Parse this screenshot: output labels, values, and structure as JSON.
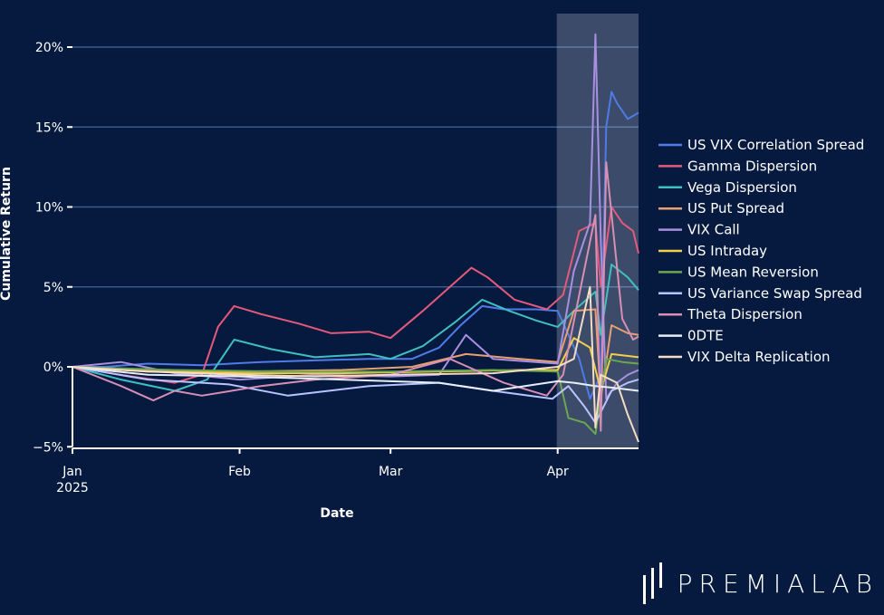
{
  "chart_data": {
    "type": "line",
    "title": "",
    "xlabel": "Date",
    "ylabel": "Cumulative Return",
    "x_ticks": [
      {
        "date": "2025-01-01",
        "label": "Jan",
        "sub": "2025"
      },
      {
        "date": "2025-02-01",
        "label": "Feb",
        "sub": ""
      },
      {
        "date": "2025-03-01",
        "label": "Mar",
        "sub": ""
      },
      {
        "date": "2025-04-01",
        "label": "Apr",
        "sub": ""
      }
    ],
    "y_ticks": [
      {
        "value": -5,
        "label": "−5%"
      },
      {
        "value": 0,
        "label": "0%"
      },
      {
        "value": 5,
        "label": "5%"
      },
      {
        "value": 10,
        "label": "10%"
      },
      {
        "value": 15,
        "label": "15%"
      },
      {
        "value": 20,
        "label": "20%"
      }
    ],
    "xlim": [
      "2025-01-01",
      "2025-04-16"
    ],
    "ylim": [
      -5,
      22
    ],
    "grid": "horizontal",
    "legend_position": "right",
    "highlight_region": {
      "start": "2025-04-01",
      "end": "2025-04-16"
    },
    "series": [
      {
        "name": "US VIX Correlation Spread",
        "color": "#4f7be8",
        "points": [
          [
            "2025-01-01",
            0
          ],
          [
            "2025-01-07",
            0
          ],
          [
            "2025-01-15",
            0.2
          ],
          [
            "2025-01-25",
            0.1
          ],
          [
            "2025-02-05",
            0.3
          ],
          [
            "2025-02-15",
            0.4
          ],
          [
            "2025-02-25",
            0.5
          ],
          [
            "2025-03-05",
            0.5
          ],
          [
            "2025-03-10",
            1.2
          ],
          [
            "2025-03-14",
            2.6
          ],
          [
            "2025-03-18",
            3.8
          ],
          [
            "2025-03-22",
            3.6
          ],
          [
            "2025-03-28",
            3.6
          ],
          [
            "2025-04-01",
            3.5
          ],
          [
            "2025-04-05",
            0.5
          ],
          [
            "2025-04-07",
            -2
          ],
          [
            "2025-04-09",
            -0.5
          ],
          [
            "2025-04-10",
            15
          ],
          [
            "2025-04-11",
            17.2
          ],
          [
            "2025-04-12",
            16.5
          ],
          [
            "2025-04-14",
            15.5
          ],
          [
            "2025-04-16",
            15.9
          ]
        ]
      },
      {
        "name": "Gamma Dispersion",
        "color": "#e35a7a",
        "points": [
          [
            "2025-01-01",
            0
          ],
          [
            "2025-01-10",
            -0.5
          ],
          [
            "2025-01-20",
            -1
          ],
          [
            "2025-01-25",
            -0.5
          ],
          [
            "2025-01-28",
            2.5
          ],
          [
            "2025-01-31",
            3.8
          ],
          [
            "2025-02-05",
            3.3
          ],
          [
            "2025-02-12",
            2.7
          ],
          [
            "2025-02-18",
            2.1
          ],
          [
            "2025-02-25",
            2.2
          ],
          [
            "2025-03-01",
            1.8
          ],
          [
            "2025-03-07",
            3.5
          ],
          [
            "2025-03-12",
            5
          ],
          [
            "2025-03-16",
            6.2
          ],
          [
            "2025-03-19",
            5.6
          ],
          [
            "2025-03-24",
            4.2
          ],
          [
            "2025-03-30",
            3.6
          ],
          [
            "2025-04-02",
            4.5
          ],
          [
            "2025-04-05",
            8.5
          ],
          [
            "2025-04-08",
            9
          ],
          [
            "2025-04-09",
            5
          ],
          [
            "2025-04-11",
            10
          ],
          [
            "2025-04-13",
            9
          ],
          [
            "2025-04-15",
            8.5
          ],
          [
            "2025-04-16",
            7.1
          ]
        ]
      },
      {
        "name": "Vega Dispersion",
        "color": "#3fbfbf",
        "points": [
          [
            "2025-01-01",
            0
          ],
          [
            "2025-01-10",
            -0.8
          ],
          [
            "2025-01-20",
            -1.5
          ],
          [
            "2025-01-26",
            -0.8
          ],
          [
            "2025-01-31",
            1.7
          ],
          [
            "2025-02-07",
            1.1
          ],
          [
            "2025-02-15",
            0.6
          ],
          [
            "2025-02-25",
            0.8
          ],
          [
            "2025-03-01",
            0.5
          ],
          [
            "2025-03-07",
            1.3
          ],
          [
            "2025-03-13",
            2.8
          ],
          [
            "2025-03-18",
            4.2
          ],
          [
            "2025-03-23",
            3.5
          ],
          [
            "2025-03-28",
            2.9
          ],
          [
            "2025-04-01",
            2.5
          ],
          [
            "2025-04-04",
            3.5
          ],
          [
            "2025-04-08",
            4.7
          ],
          [
            "2025-04-09",
            2
          ],
          [
            "2025-04-11",
            6.4
          ],
          [
            "2025-04-14",
            5.6
          ],
          [
            "2025-04-16",
            4.8
          ]
        ]
      },
      {
        "name": "US Put Spread",
        "color": "#e8a070",
        "points": [
          [
            "2025-01-01",
            0
          ],
          [
            "2025-01-15",
            -0.2
          ],
          [
            "2025-02-01",
            -0.3
          ],
          [
            "2025-02-20",
            -0.2
          ],
          [
            "2025-03-05",
            0
          ],
          [
            "2025-03-15",
            0.8
          ],
          [
            "2025-03-25",
            0.5
          ],
          [
            "2025-04-01",
            0.3
          ],
          [
            "2025-04-04",
            3.5
          ],
          [
            "2025-04-08",
            3.6
          ],
          [
            "2025-04-09",
            -2
          ],
          [
            "2025-04-11",
            2.6
          ],
          [
            "2025-04-14",
            2.1
          ],
          [
            "2025-04-16",
            2
          ]
        ]
      },
      {
        "name": "VIX Call",
        "color": "#a98fe0",
        "points": [
          [
            "2025-01-01",
            0
          ],
          [
            "2025-01-10",
            0.3
          ],
          [
            "2025-01-20",
            -0.4
          ],
          [
            "2025-02-01",
            -0.8
          ],
          [
            "2025-02-15",
            -0.5
          ],
          [
            "2025-03-01",
            -0.6
          ],
          [
            "2025-03-10",
            -0.5
          ],
          [
            "2025-03-15",
            2
          ],
          [
            "2025-03-20",
            0.5
          ],
          [
            "2025-04-01",
            0.2
          ],
          [
            "2025-04-04",
            6
          ],
          [
            "2025-04-07",
            9
          ],
          [
            "2025-04-08",
            20.8
          ],
          [
            "2025-04-09",
            8
          ],
          [
            "2025-04-10",
            -2
          ],
          [
            "2025-04-12",
            -1
          ],
          [
            "2025-04-14",
            -0.5
          ],
          [
            "2025-04-16",
            -0.2
          ]
        ]
      },
      {
        "name": "US Intraday",
        "color": "#f2cf4a",
        "points": [
          [
            "2025-01-01",
            0
          ],
          [
            "2025-01-15",
            -0.3
          ],
          [
            "2025-02-01",
            -0.4
          ],
          [
            "2025-02-20",
            -0.4
          ],
          [
            "2025-03-10",
            -0.3
          ],
          [
            "2025-03-25",
            -0.2
          ],
          [
            "2025-04-01",
            -0.2
          ],
          [
            "2025-04-04",
            1.8
          ],
          [
            "2025-04-07",
            1.2
          ],
          [
            "2025-04-09",
            -1.5
          ],
          [
            "2025-04-11",
            0.8
          ],
          [
            "2025-04-16",
            0.6
          ]
        ]
      },
      {
        "name": "US Mean Reversion",
        "color": "#6aa84f",
        "points": [
          [
            "2025-01-01",
            0
          ],
          [
            "2025-01-20",
            -0.2
          ],
          [
            "2025-02-10",
            -0.3
          ],
          [
            "2025-03-01",
            -0.3
          ],
          [
            "2025-03-20",
            -0.2
          ],
          [
            "2025-04-01",
            -0.3
          ],
          [
            "2025-04-03",
            -3.2
          ],
          [
            "2025-04-06",
            -3.5
          ],
          [
            "2025-04-08",
            -4.2
          ],
          [
            "2025-04-10",
            0.5
          ],
          [
            "2025-04-13",
            0.3
          ],
          [
            "2025-04-16",
            0.2
          ]
        ]
      },
      {
        "name": "US Variance Swap Spread",
        "color": "#b9c3ff",
        "points": [
          [
            "2025-01-01",
            0
          ],
          [
            "2025-01-15",
            -0.8
          ],
          [
            "2025-01-30",
            -1.1
          ],
          [
            "2025-02-10",
            -1.8
          ],
          [
            "2025-02-25",
            -1.2
          ],
          [
            "2025-03-10",
            -1.0
          ],
          [
            "2025-03-20",
            -1.5
          ],
          [
            "2025-03-31",
            -2.0
          ],
          [
            "2025-04-03",
            -1.2
          ],
          [
            "2025-04-06",
            -2.5
          ],
          [
            "2025-04-08",
            -3.5
          ],
          [
            "2025-04-11",
            -1.5
          ],
          [
            "2025-04-14",
            -1.0
          ],
          [
            "2025-04-16",
            -0.8
          ]
        ]
      },
      {
        "name": "Theta Dispersion",
        "color": "#d88fb5",
        "points": [
          [
            "2025-01-01",
            0
          ],
          [
            "2025-01-10",
            -1.2
          ],
          [
            "2025-01-16",
            -2.1
          ],
          [
            "2025-01-20",
            -1.5
          ],
          [
            "2025-01-25",
            -1.8
          ],
          [
            "2025-02-05",
            -1.2
          ],
          [
            "2025-02-15",
            -0.8
          ],
          [
            "2025-03-01",
            -0.5
          ],
          [
            "2025-03-12",
            0.5
          ],
          [
            "2025-03-22",
            -1
          ],
          [
            "2025-03-30",
            -1.8
          ],
          [
            "2025-04-02",
            -0.5
          ],
          [
            "2025-04-05",
            4.5
          ],
          [
            "2025-04-08",
            9.5
          ],
          [
            "2025-04-09",
            -4.0
          ],
          [
            "2025-04-10",
            12.8
          ],
          [
            "2025-04-13",
            3
          ],
          [
            "2025-04-15",
            1.7
          ],
          [
            "2025-04-16",
            1.9
          ]
        ]
      },
      {
        "name": "0DTE",
        "color": "#e8eef8",
        "points": [
          [
            "2025-01-01",
            0
          ],
          [
            "2025-01-15",
            -0.5
          ],
          [
            "2025-02-01",
            -0.6
          ],
          [
            "2025-02-20",
            -0.8
          ],
          [
            "2025-03-10",
            -1.0
          ],
          [
            "2025-03-20",
            -1.5
          ],
          [
            "2025-04-01",
            -0.9
          ],
          [
            "2025-04-04",
            -1.0
          ],
          [
            "2025-04-08",
            -1.2
          ],
          [
            "2025-04-11",
            -1.3
          ],
          [
            "2025-04-16",
            -1.5
          ]
        ]
      },
      {
        "name": "VIX Delta Replication",
        "color": "#f5dcc4",
        "points": [
          [
            "2025-01-01",
            0
          ],
          [
            "2025-01-15",
            -0.3
          ],
          [
            "2025-02-01",
            -0.5
          ],
          [
            "2025-02-15",
            -0.6
          ],
          [
            "2025-03-01",
            -0.5
          ],
          [
            "2025-03-20",
            -0.4
          ],
          [
            "2025-04-01",
            0
          ],
          [
            "2025-04-04",
            0.5
          ],
          [
            "2025-04-07",
            5
          ],
          [
            "2025-04-08",
            -3.8
          ],
          [
            "2025-04-09",
            -0.5
          ],
          [
            "2025-04-12",
            -1
          ],
          [
            "2025-04-14",
            -3
          ],
          [
            "2025-04-16",
            -4.7
          ]
        ]
      }
    ]
  },
  "brand": {
    "name": "PREMIALAB"
  }
}
